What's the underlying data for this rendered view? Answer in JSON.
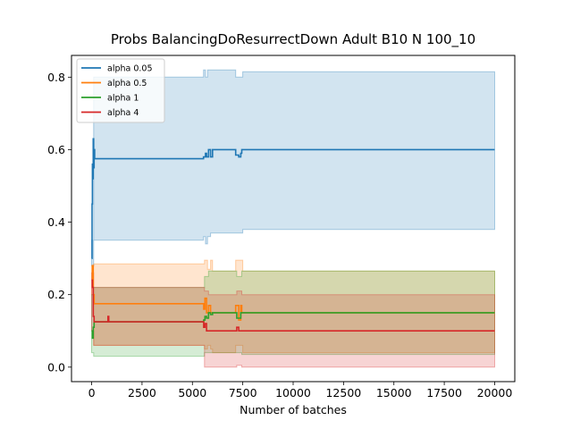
{
  "chart_data": {
    "type": "line",
    "title": "Probs BalancingDoResurrectDown Adult B10 N 100_10",
    "xlabel": "Number of batches",
    "ylabel": "",
    "xlim": [
      -1000,
      21000
    ],
    "ylim": [
      -0.04,
      0.86
    ],
    "xticks": [
      0,
      2500,
      5000,
      7500,
      10000,
      12500,
      15000,
      17500,
      20000
    ],
    "xtick_labels": [
      "0",
      "2500",
      "5000",
      "7500",
      "10000",
      "12500",
      "15000",
      "17500",
      "20000"
    ],
    "yticks": [
      0.0,
      0.2,
      0.4,
      0.6,
      0.8
    ],
    "ytick_labels": [
      "0.0",
      "0.2",
      "0.4",
      "0.6",
      "0.8"
    ],
    "grid": false,
    "legend": "top-left",
    "series": [
      {
        "name": "alpha 0.05",
        "color": "#1f77b4",
        "mean": [
          [
            0,
            0.3
          ],
          [
            20,
            0.45
          ],
          [
            40,
            0.56
          ],
          [
            60,
            0.52
          ],
          [
            80,
            0.63
          ],
          [
            100,
            0.55
          ],
          [
            120,
            0.6
          ],
          [
            150,
            0.575
          ],
          [
            5500,
            0.575
          ],
          [
            5550,
            0.58
          ],
          [
            5650,
            0.59
          ],
          [
            5700,
            0.58
          ],
          [
            5800,
            0.6
          ],
          [
            5900,
            0.58
          ],
          [
            6000,
            0.6
          ],
          [
            7100,
            0.6
          ],
          [
            7150,
            0.585
          ],
          [
            7300,
            0.58
          ],
          [
            7400,
            0.59
          ],
          [
            7450,
            0.6
          ],
          [
            20000,
            0.6
          ]
        ],
        "upper": [
          [
            0,
            0.35
          ],
          [
            100,
            0.8
          ],
          [
            5500,
            0.8
          ],
          [
            5550,
            0.82
          ],
          [
            5650,
            0.8
          ],
          [
            5750,
            0.82
          ],
          [
            7100,
            0.82
          ],
          [
            7150,
            0.8
          ],
          [
            7450,
            0.8
          ],
          [
            7500,
            0.815
          ],
          [
            20000,
            0.815
          ]
        ],
        "lower": [
          [
            0,
            0.28
          ],
          [
            100,
            0.35
          ],
          [
            5500,
            0.35
          ],
          [
            5550,
            0.36
          ],
          [
            5650,
            0.34
          ],
          [
            5750,
            0.36
          ],
          [
            5900,
            0.37
          ],
          [
            7100,
            0.37
          ],
          [
            7150,
            0.37
          ],
          [
            7450,
            0.37
          ],
          [
            7500,
            0.38
          ],
          [
            20000,
            0.38
          ]
        ]
      },
      {
        "name": "alpha 0.5",
        "color": "#ff7f0e",
        "mean": [
          [
            0,
            0.24
          ],
          [
            40,
            0.28
          ],
          [
            80,
            0.2
          ],
          [
            120,
            0.175
          ],
          [
            5500,
            0.175
          ],
          [
            5560,
            0.16
          ],
          [
            5620,
            0.19
          ],
          [
            5700,
            0.15
          ],
          [
            5800,
            0.17
          ],
          [
            5900,
            0.15
          ],
          [
            6000,
            0.15
          ],
          [
            7100,
            0.15
          ],
          [
            7150,
            0.17
          ],
          [
            7300,
            0.13
          ],
          [
            7400,
            0.17
          ],
          [
            7450,
            0.15
          ],
          [
            20000,
            0.15
          ]
        ],
        "upper": [
          [
            0,
            0.28
          ],
          [
            100,
            0.285
          ],
          [
            5500,
            0.285
          ],
          [
            5600,
            0.295
          ],
          [
            5750,
            0.27
          ],
          [
            5900,
            0.295
          ],
          [
            6000,
            0.265
          ],
          [
            7100,
            0.265
          ],
          [
            7150,
            0.295
          ],
          [
            7450,
            0.295
          ],
          [
            7500,
            0.265
          ],
          [
            20000,
            0.265
          ]
        ],
        "lower": [
          [
            0,
            0.2
          ],
          [
            100,
            0.06
          ],
          [
            5500,
            0.06
          ],
          [
            5600,
            0.05
          ],
          [
            5750,
            0.06
          ],
          [
            5900,
            0.05
          ],
          [
            6000,
            0.04
          ],
          [
            7100,
            0.04
          ],
          [
            7150,
            0.06
          ],
          [
            7450,
            0.06
          ],
          [
            7500,
            0.04
          ],
          [
            20000,
            0.04
          ]
        ]
      },
      {
        "name": "alpha 1",
        "color": "#2ca02c",
        "mean": [
          [
            0,
            0.1
          ],
          [
            40,
            0.08
          ],
          [
            80,
            0.11
          ],
          [
            120,
            0.125
          ],
          [
            5500,
            0.125
          ],
          [
            5560,
            0.13
          ],
          [
            5620,
            0.14
          ],
          [
            5700,
            0.135
          ],
          [
            5800,
            0.15
          ],
          [
            5900,
            0.145
          ],
          [
            6000,
            0.15
          ],
          [
            7100,
            0.15
          ],
          [
            7200,
            0.135
          ],
          [
            7300,
            0.135
          ],
          [
            7400,
            0.15
          ],
          [
            20000,
            0.15
          ]
        ],
        "upper": [
          [
            0,
            0.2
          ],
          [
            100,
            0.22
          ],
          [
            5500,
            0.22
          ],
          [
            5600,
            0.25
          ],
          [
            5800,
            0.265
          ],
          [
            7100,
            0.265
          ],
          [
            7200,
            0.25
          ],
          [
            7450,
            0.265
          ],
          [
            20000,
            0.265
          ]
        ],
        "lower": [
          [
            0,
            0.04
          ],
          [
            100,
            0.03
          ],
          [
            5500,
            0.03
          ],
          [
            5600,
            0.04
          ],
          [
            5800,
            0.04
          ],
          [
            7100,
            0.04
          ],
          [
            7450,
            0.035
          ],
          [
            20000,
            0.035
          ]
        ]
      },
      {
        "name": "alpha 4",
        "color": "#d62728",
        "mean": [
          [
            0,
            0.24
          ],
          [
            40,
            0.22
          ],
          [
            80,
            0.14
          ],
          [
            120,
            0.125
          ],
          [
            800,
            0.125
          ],
          [
            810,
            0.14
          ],
          [
            850,
            0.125
          ],
          [
            5500,
            0.125
          ],
          [
            5560,
            0.11
          ],
          [
            5620,
            0.12
          ],
          [
            5700,
            0.1
          ],
          [
            7100,
            0.1
          ],
          [
            7200,
            0.11
          ],
          [
            7300,
            0.1
          ],
          [
            20000,
            0.1
          ]
        ],
        "upper": [
          [
            0,
            0.26
          ],
          [
            100,
            0.22
          ],
          [
            5500,
            0.22
          ],
          [
            5600,
            0.21
          ],
          [
            5800,
            0.2
          ],
          [
            7100,
            0.2
          ],
          [
            7200,
            0.21
          ],
          [
            7450,
            0.2
          ],
          [
            20000,
            0.2
          ]
        ],
        "lower": [
          [
            0,
            0.1
          ],
          [
            100,
            0.06
          ],
          [
            5500,
            0.06
          ],
          [
            5600,
            0.0
          ],
          [
            5700,
            0.0
          ],
          [
            7100,
            0.0
          ],
          [
            7200,
            0.005
          ],
          [
            7450,
            0.0
          ],
          [
            20000,
            0.0
          ]
        ]
      }
    ]
  }
}
